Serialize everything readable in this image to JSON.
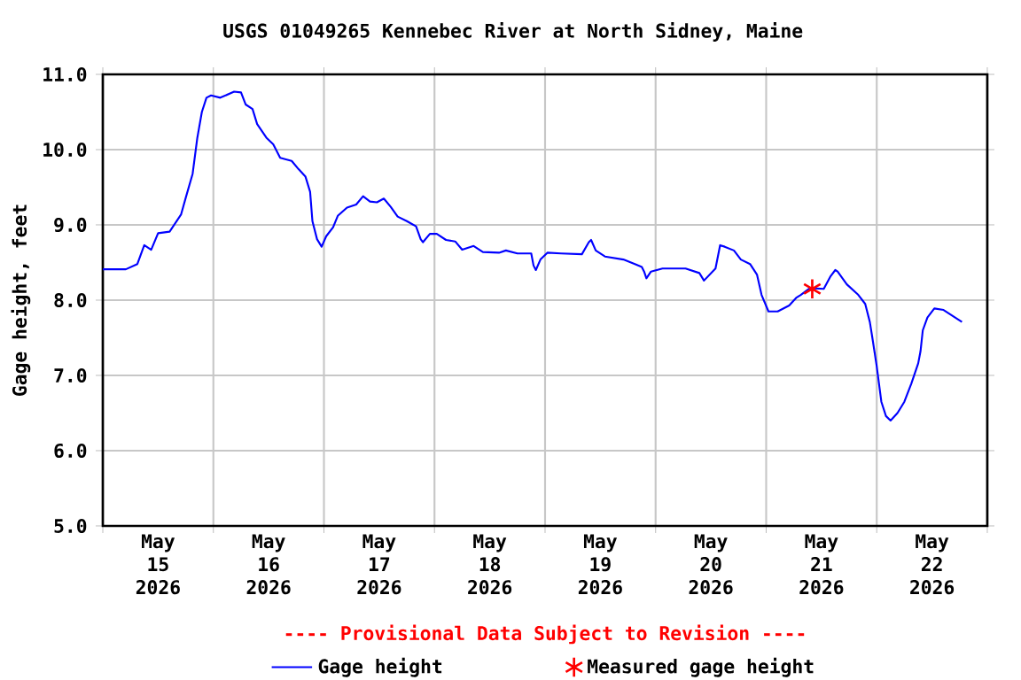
{
  "chart_data": {
    "type": "line",
    "title": "USGS 01049265 Kennebec River at North Sidney, Maine",
    "ylabel": "Gage height, feet",
    "annotations": [
      "---- Provisional Data Subject to Revision ----"
    ],
    "xlim": [
      "2026-05-15T00:00",
      "2026-05-23T00:00"
    ],
    "xticks": [
      {
        "value": "2026-05-15T00:00",
        "label": null
      },
      {
        "value": "2026-05-16T00:00",
        "label": null
      },
      {
        "value": "2026-05-17T00:00",
        "label": null
      },
      {
        "value": "2026-05-18T00:00",
        "label": null
      },
      {
        "value": "2026-05-19T00:00",
        "label": null
      },
      {
        "value": "2026-05-20T00:00",
        "label": null
      },
      {
        "value": "2026-05-21T00:00",
        "label": null
      },
      {
        "value": "2026-05-22T00:00",
        "label": null
      },
      {
        "value": "2026-05-23T00:00",
        "label": null
      },
      {
        "value": "2026-05-15T12:00",
        "label": "May 15 2026"
      },
      {
        "value": "2026-05-16T12:00",
        "label": "May 16 2026"
      },
      {
        "value": "2026-05-17T12:00",
        "label": "May 17 2026"
      },
      {
        "value": "2026-05-18T12:00",
        "label": "May 18 2026"
      },
      {
        "value": "2026-05-19T12:00",
        "label": "May 19 2026"
      },
      {
        "value": "2026-05-20T12:00",
        "label": "May 20 2026"
      },
      {
        "value": "2026-05-21T12:00",
        "label": "May 21 2026"
      },
      {
        "value": "2026-05-22T12:00",
        "label": "May 22 2026"
      }
    ],
    "ylim": [
      5,
      11
    ],
    "yticks": [
      {
        "value": 5,
        "label": "5.0"
      },
      {
        "value": 6,
        "label": "6.0"
      },
      {
        "value": 7,
        "label": "7.0"
      },
      {
        "value": 8,
        "label": "8.0"
      },
      {
        "value": 9,
        "label": "9.0"
      },
      {
        "value": 10,
        "label": "10.0"
      },
      {
        "value": 11,
        "label": "11.0"
      }
    ],
    "grid": true,
    "legend": "bottom",
    "series": [
      {
        "name": "Gage height",
        "type": "line",
        "color": "#0000ff",
        "x": [
          "2026-05-15T00:00",
          "2026-05-15T05:00",
          "2026-05-15T07:30",
          "2026-05-15T09:00",
          "2026-05-15T10:30",
          "2026-05-15T12:00",
          "2026-05-15T14:30",
          "2026-05-15T17:00",
          "2026-05-15T18:00",
          "2026-05-15T19:30",
          "2026-05-15T20:30",
          "2026-05-15T21:30",
          "2026-05-15T22:30",
          "2026-05-15T23:30",
          "2026-05-16T01:30",
          "2026-05-16T04:30",
          "2026-05-16T06:00",
          "2026-05-16T07:00",
          "2026-05-16T08:30",
          "2026-05-16T09:30",
          "2026-05-16T11:30",
          "2026-05-16T13:00",
          "2026-05-16T14:30",
          "2026-05-16T17:00",
          "2026-05-16T18:30",
          "2026-05-16T20:00",
          "2026-05-16T21:00",
          "2026-05-16T21:30",
          "2026-05-16T22:30",
          "2026-05-16T23:30",
          "2026-05-17T00:30",
          "2026-05-17T02:00",
          "2026-05-17T03:00",
          "2026-05-17T05:00",
          "2026-05-17T07:00",
          "2026-05-17T08:30",
          "2026-05-17T10:00",
          "2026-05-17T11:30",
          "2026-05-17T13:00",
          "2026-05-17T14:30",
          "2026-05-17T16:00",
          "2026-05-17T18:00",
          "2026-05-17T20:00",
          "2026-05-17T21:00",
          "2026-05-17T21:30",
          "2026-05-17T23:00",
          "2026-05-18T00:30",
          "2026-05-18T02:30",
          "2026-05-18T04:30",
          "2026-05-18T06:00",
          "2026-05-18T08:30",
          "2026-05-18T10:30",
          "2026-05-18T14:00",
          "2026-05-18T15:30",
          "2026-05-18T18:00",
          "2026-05-18T21:00",
          "2026-05-18T21:30",
          "2026-05-18T22:00",
          "2026-05-18T23:00",
          "2026-05-19T00:30",
          "2026-05-19T03:30",
          "2026-05-19T08:00",
          "2026-05-19T09:30",
          "2026-05-19T10:00",
          "2026-05-19T11:00",
          "2026-05-19T13:00",
          "2026-05-19T17:00",
          "2026-05-19T19:30",
          "2026-05-19T21:00",
          "2026-05-19T21:30",
          "2026-05-19T22:00",
          "2026-05-19T23:00",
          "2026-05-20T01:30",
          "2026-05-20T06:30",
          "2026-05-20T09:30",
          "2026-05-20T10:30",
          "2026-05-20T13:00",
          "2026-05-20T14:00",
          "2026-05-20T15:00",
          "2026-05-20T17:00",
          "2026-05-20T18:30",
          "2026-05-20T20:30",
          "2026-05-20T22:00",
          "2026-05-20T23:00",
          "2026-05-21T00:30",
          "2026-05-21T02:30",
          "2026-05-21T05:00",
          "2026-05-21T06:30",
          "2026-05-21T07:30",
          "2026-05-21T09:30",
          "2026-05-21T12:30",
          "2026-05-21T14:00",
          "2026-05-21T15:00",
          "2026-05-21T15:30",
          "2026-05-21T17:30",
          "2026-05-21T20:00",
          "2026-05-21T21:30",
          "2026-05-21T22:30",
          "2026-05-21T23:00",
          "2026-05-22T00:00",
          "2026-05-22T01:00",
          "2026-05-22T02:00",
          "2026-05-22T03:00",
          "2026-05-22T04:30",
          "2026-05-22T06:00",
          "2026-05-22T07:30",
          "2026-05-22T09:00",
          "2026-05-22T09:30",
          "2026-05-22T10:00",
          "2026-05-22T11:00",
          "2026-05-22T12:30",
          "2026-05-22T14:30",
          "2026-05-22T16:30",
          "2026-05-22T18:30"
        ],
        "values": [
          8.41,
          8.41,
          8.48,
          8.73,
          8.67,
          8.89,
          8.91,
          9.14,
          9.36,
          9.68,
          10.15,
          10.5,
          10.69,
          10.72,
          10.69,
          10.77,
          10.76,
          10.6,
          10.54,
          10.34,
          10.16,
          10.07,
          9.89,
          9.85,
          9.74,
          9.64,
          9.44,
          9.05,
          8.81,
          8.71,
          8.85,
          8.97,
          9.12,
          9.23,
          9.27,
          9.38,
          9.31,
          9.3,
          9.35,
          9.24,
          9.11,
          9.05,
          8.98,
          8.81,
          8.77,
          8.88,
          8.88,
          8.8,
          8.78,
          8.67,
          8.72,
          8.64,
          8.63,
          8.66,
          8.62,
          8.62,
          8.46,
          8.4,
          8.54,
          8.63,
          8.62,
          8.61,
          8.77,
          8.8,
          8.66,
          8.58,
          8.54,
          8.48,
          8.44,
          8.38,
          8.29,
          8.38,
          8.42,
          8.42,
          8.36,
          8.26,
          8.42,
          8.73,
          8.71,
          8.66,
          8.54,
          8.48,
          8.34,
          8.07,
          7.85,
          7.85,
          7.93,
          8.03,
          8.07,
          8.16,
          8.15,
          8.32,
          8.4,
          8.38,
          8.21,
          8.07,
          7.95,
          7.71,
          7.52,
          7.12,
          6.65,
          6.46,
          6.4,
          6.5,
          6.65,
          6.89,
          7.16,
          7.32,
          7.6,
          7.77,
          7.89,
          7.87,
          7.79,
          7.71
        ]
      },
      {
        "name": "Measured gage height",
        "type": "scatter",
        "color": "#ff0000",
        "marker": "cross",
        "x": [
          "2026-05-21T10:00"
        ],
        "values": [
          8.15
        ]
      }
    ]
  }
}
